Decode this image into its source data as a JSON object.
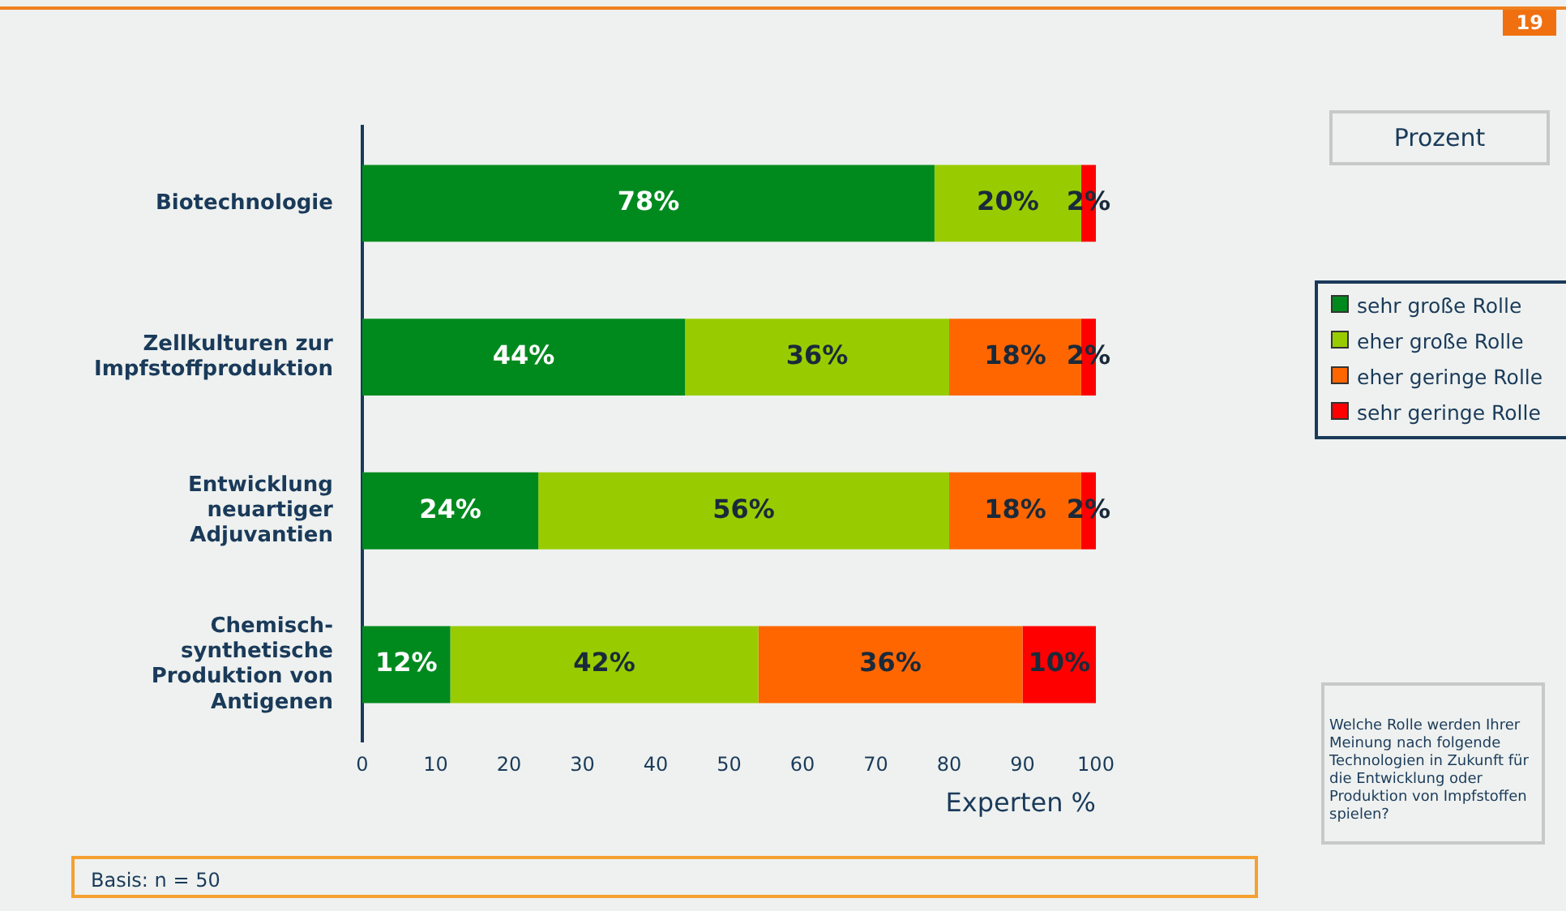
{
  "chart_data": {
    "type": "bar",
    "orientation": "horizontal",
    "stacked": true,
    "categories": [
      "Biotechnologie",
      "Zellkulturen zur Impfstoffproduktion",
      "Entwicklung neuartiger Adjuvantien",
      "Chemisch-synthetische Produktion von Antigenen"
    ],
    "series": [
      {
        "name": "sehr große Rolle",
        "color": "#008a1e",
        "values": [
          78,
          44,
          24,
          12
        ],
        "value_labels": [
          "78%",
          "44%",
          "24%",
          "12%"
        ]
      },
      {
        "name": "eher große Rolle",
        "color": "#99cc00",
        "values": [
          20,
          36,
          56,
          42
        ],
        "value_labels": [
          "20%",
          "36%",
          "56%",
          "42%"
        ]
      },
      {
        "name": "eher geringe Rolle",
        "color": "#ff6600",
        "values": [
          0,
          18,
          18,
          36
        ],
        "value_labels": [
          null,
          "18%",
          "18%",
          "36%"
        ]
      },
      {
        "name": "sehr geringe Rolle",
        "color": "#ff0000",
        "values": [
          2,
          2,
          2,
          10
        ],
        "value_labels": [
          "2%",
          "2%",
          "2%",
          "10%"
        ]
      }
    ],
    "xlabel": "Experten %",
    "xlim": [
      0,
      100
    ],
    "xticks": [
      0,
      10,
      20,
      30,
      40,
      50,
      60,
      70,
      80,
      90,
      100
    ],
    "grid": false,
    "legend": "right",
    "annotations": [
      "19",
      "Prozent",
      "Welche Rolle werden Ihrer Meinung nach folgende Technologien in Zukunft für die Entwicklung oder Produktion von Impfstoffen spielen?",
      "Basis:  n = 50"
    ]
  }
}
